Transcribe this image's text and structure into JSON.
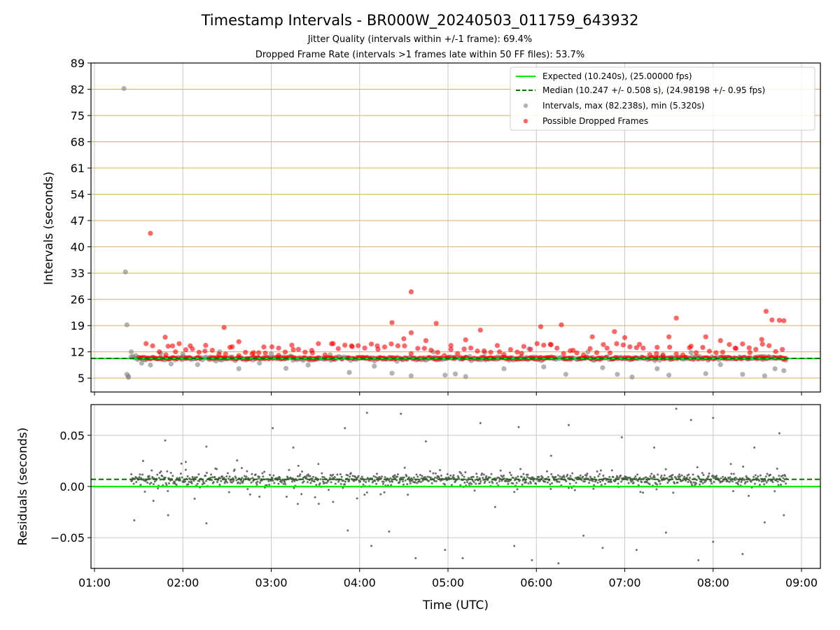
{
  "title": "Timestamp Intervals - BR000W_20240503_011759_643932",
  "subtitle_1": "Jitter Quality (intervals within +/-1 frame): 69.4%",
  "subtitle_2": "Dropped Frame Rate (intervals >1 frames late within 50 FF files): 53.7%",
  "colors": {
    "expected": "#00ee00",
    "median": "#007700",
    "intervals": "#808080",
    "dropped": "#ff0000",
    "hline": "#d4b25a",
    "grid": "#c8c8c8",
    "residual": "#555555"
  },
  "chart_data": [
    {
      "type": "scatter",
      "ylabel": "Intervals (seconds)",
      "yticks": [
        5,
        12,
        19,
        26,
        33,
        40,
        47,
        54,
        61,
        68,
        75,
        82,
        89
      ],
      "ylim": [
        1.3,
        89
      ],
      "x_range_utc": [
        "01:17:59",
        "08:50:00"
      ],
      "expected_interval_s": 10.24,
      "expected_fps": 25.0,
      "median_interval_s": 10.247,
      "median_std_s": 0.508,
      "median_fps": 24.98198,
      "median_fps_std": 0.95,
      "max_interval_s": 82.238,
      "min_interval_s": 5.32,
      "grid": "vertical",
      "horizontal_reference_lines": [
        5,
        12,
        19,
        26,
        33,
        40,
        47,
        54,
        61,
        68,
        75,
        82,
        89
      ],
      "legend": {
        "placement": "top-right",
        "entries": [
          "Expected (10.240s), (25.00000 fps)",
          "Median (10.247 +/- 0.508 s), (24.98198 +/- 0.95 fps)",
          "Intervals, max (82.238s), min (5.320s)",
          "Possible Dropped Frames"
        ]
      },
      "series": [
        {
          "name": "Intervals, max (82.238s), min (5.320s)",
          "points": [
            [
              "01:20",
              82.2
            ],
            [
              "01:21",
              33.3
            ],
            [
              "01:22",
              19.2
            ],
            [
              "01:22",
              6.0
            ],
            [
              "01:23",
              5.5
            ],
            [
              "01:23",
              5.2
            ],
            [
              "01:25",
              12.0
            ],
            [
              "01:28",
              11.0
            ],
            [
              "01:32",
              9.0
            ],
            [
              "01:38",
              8.5
            ],
            [
              "01:45",
              11.6
            ],
            [
              "01:52",
              8.8
            ],
            [
              "02:00",
              11.4
            ],
            [
              "02:10",
              8.6
            ],
            [
              "02:25",
              12.0
            ],
            [
              "02:38",
              7.5
            ],
            [
              "02:52",
              9.0
            ],
            [
              "03:00",
              11.5
            ],
            [
              "03:10",
              7.6
            ],
            [
              "03:25",
              8.5
            ],
            [
              "03:40",
              11.2
            ],
            [
              "03:53",
              6.5
            ],
            [
              "04:10",
              8.2
            ],
            [
              "04:22",
              6.3
            ],
            [
              "04:35",
              5.6
            ],
            [
              "04:50",
              12.0
            ],
            [
              "04:58",
              5.8
            ],
            [
              "05:05",
              6.1
            ],
            [
              "05:12",
              5.4
            ],
            [
              "05:25",
              11.8
            ],
            [
              "05:38",
              7.5
            ],
            [
              "05:55",
              12.8
            ],
            [
              "06:05",
              8.0
            ],
            [
              "06:20",
              6.0
            ],
            [
              "06:35",
              12.0
            ],
            [
              "06:45",
              7.8
            ],
            [
              "06:55",
              6.0
            ],
            [
              "07:05",
              5.3
            ],
            [
              "07:22",
              7.5
            ],
            [
              "07:30",
              5.8
            ],
            [
              "07:45",
              11.8
            ],
            [
              "07:55",
              6.2
            ],
            [
              "08:05",
              8.6
            ],
            [
              "08:20",
              6.0
            ],
            [
              "08:35",
              5.6
            ],
            [
              "08:42",
              7.5
            ],
            [
              "08:48",
              7.0
            ]
          ]
        },
        {
          "name": "Possible Dropped Frames",
          "points": [
            [
              "01:38",
              43.6
            ],
            [
              "01:48",
              15.9
            ],
            [
              "01:50",
              13.5
            ],
            [
              "01:55",
              12.0
            ],
            [
              "02:05",
              13.6
            ],
            [
              "02:15",
              12.2
            ],
            [
              "02:28",
              18.5
            ],
            [
              "02:32",
              13.2
            ],
            [
              "02:38",
              14.7
            ],
            [
              "02:48",
              11.8
            ],
            [
              "02:55",
              13.3
            ],
            [
              "03:05",
              13.0
            ],
            [
              "03:15",
              12.6
            ],
            [
              "03:28",
              11.7
            ],
            [
              "03:42",
              14.2
            ],
            [
              "03:55",
              13.4
            ],
            [
              "04:12",
              13.6
            ],
            [
              "04:22",
              19.8
            ],
            [
              "04:30",
              15.5
            ],
            [
              "04:35",
              17.1
            ],
            [
              "04:35",
              28.0
            ],
            [
              "04:45",
              15.0
            ],
            [
              "04:52",
              19.6
            ],
            [
              "05:02",
              13.7
            ],
            [
              "05:12",
              15.2
            ],
            [
              "05:22",
              17.8
            ],
            [
              "05:35",
              12.0
            ],
            [
              "05:50",
              11.6
            ],
            [
              "06:03",
              18.7
            ],
            [
              "06:10",
              13.9
            ],
            [
              "06:17",
              19.2
            ],
            [
              "06:25",
              12.4
            ],
            [
              "06:38",
              16.0
            ],
            [
              "06:48",
              13.0
            ],
            [
              "06:53",
              17.4
            ],
            [
              "07:00",
              15.8
            ],
            [
              "07:10",
              14.0
            ],
            [
              "07:22",
              13.2
            ],
            [
              "07:30",
              16.0
            ],
            [
              "07:35",
              21.0
            ],
            [
              "07:45",
              13.5
            ],
            [
              "07:55",
              16.0
            ],
            [
              "08:05",
              15.0
            ],
            [
              "08:15",
              13.0
            ],
            [
              "08:25",
              11.8
            ],
            [
              "08:33",
              15.3
            ],
            [
              "08:36",
              22.8
            ],
            [
              "08:40",
              20.5
            ],
            [
              "08:45",
              20.4
            ],
            [
              "08:48",
              20.3
            ]
          ]
        }
      ]
    },
    {
      "type": "scatter",
      "xlabel": "Time (UTC)",
      "ylabel": "Residuals (seconds)",
      "xticks": [
        "01:00",
        "02:00",
        "03:00",
        "04:00",
        "05:00",
        "06:00",
        "07:00",
        "08:00",
        "09:00"
      ],
      "yticks": [
        "0.05",
        "0.00",
        "−0.05"
      ],
      "ylim": [
        -0.08,
        0.08
      ],
      "grid": true,
      "expected_residual": 0.0,
      "median_residual": 0.007,
      "series": [
        {
          "name": "Residuals",
          "points": [
            [
              "01:25",
              0.012
            ],
            [
              "01:27",
              -0.033
            ],
            [
              "01:33",
              0.025
            ],
            [
              "01:40",
              -0.014
            ],
            [
              "01:48",
              0.045
            ],
            [
              "01:50",
              -0.028
            ],
            [
              "02:02",
              0.024
            ],
            [
              "02:08",
              -0.012
            ],
            [
              "02:16",
              0.039
            ],
            [
              "02:16",
              -0.036
            ],
            [
              "02:40",
              0.018
            ],
            [
              "02:52",
              -0.01
            ],
            [
              "03:01",
              0.057
            ],
            [
              "03:15",
              0.038
            ],
            [
              "03:18",
              -0.017
            ],
            [
              "03:32",
              0.022
            ],
            [
              "03:42",
              -0.015
            ],
            [
              "03:50",
              0.057
            ],
            [
              "03:52",
              -0.043
            ],
            [
              "04:05",
              0.072
            ],
            [
              "04:08",
              -0.058
            ],
            [
              "04:20",
              -0.044
            ],
            [
              "04:28",
              0.071
            ],
            [
              "04:38",
              -0.07
            ],
            [
              "04:45",
              0.044
            ],
            [
              "04:58",
              -0.062
            ],
            [
              "05:10",
              -0.07
            ],
            [
              "05:22",
              0.062
            ],
            [
              "05:32",
              -0.02
            ],
            [
              "05:45",
              -0.058
            ],
            [
              "05:48",
              0.058
            ],
            [
              "05:57",
              -0.072
            ],
            [
              "06:10",
              0.03
            ],
            [
              "06:15",
              -0.075
            ],
            [
              "06:22",
              0.06
            ],
            [
              "06:32",
              -0.048
            ],
            [
              "06:45",
              -0.06
            ],
            [
              "06:58",
              0.048
            ],
            [
              "07:08",
              -0.062
            ],
            [
              "07:20",
              0.038
            ],
            [
              "07:28",
              -0.045
            ],
            [
              "07:35",
              0.076
            ],
            [
              "07:45",
              0.065
            ],
            [
              "07:50",
              -0.072
            ],
            [
              "08:00",
              0.067
            ],
            [
              "08:00",
              -0.054
            ],
            [
              "08:12",
              0.022
            ],
            [
              "08:20",
              -0.066
            ],
            [
              "08:28",
              0.038
            ],
            [
              "08:35",
              -0.035
            ],
            [
              "08:45",
              0.052
            ],
            [
              "08:48",
              -0.028
            ]
          ]
        }
      ]
    }
  ]
}
